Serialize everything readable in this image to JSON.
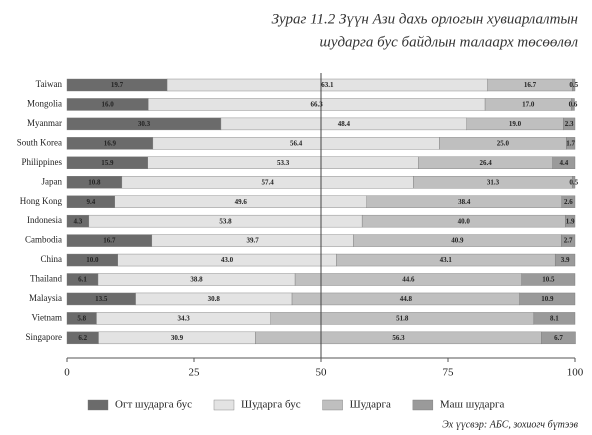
{
  "chart_data": {
    "type": "stacked-bar-horizontal",
    "title": [
      "Зураг 11.2 Зүүн Ази дахь орлогын хувиарлалтын",
      "шударга бус байдлын талаарх төсөөлөл"
    ],
    "source": "Эх үүсвэр: АБС, зохиогч бүтээв",
    "categories": [
      "Taiwan",
      "Mongolia",
      "Myanmar",
      "South Korea",
      "Philippines",
      "Japan",
      "Hong Kong",
      "Indonesia",
      "Cambodia",
      "China",
      "Thailand",
      "Malaysia",
      "Vietnam",
      "Singapore"
    ],
    "series": [
      {
        "name": "Огт шударга бус",
        "color": "#6b6b6b",
        "values": [
          19.7,
          16.0,
          30.3,
          16.9,
          15.9,
          10.8,
          9.4,
          4.3,
          16.7,
          10.0,
          6.1,
          13.5,
          5.8,
          6.2
        ],
        "value_labels": [
          "19.7",
          "16.0",
          "30.3",
          "16.9",
          "15.9",
          "10.8",
          "9.4",
          "4.3",
          "16.7",
          "10.0",
          "6.1",
          "13.5",
          "5.8",
          "6.2"
        ]
      },
      {
        "name": "Шударга бус",
        "color": "#e3e3e3",
        "values": [
          63.1,
          66.3,
          48.4,
          56.4,
          53.3,
          57.4,
          49.6,
          53.8,
          39.7,
          43.0,
          38.8,
          30.8,
          34.3,
          30.9
        ],
        "value_labels": [
          "63.1",
          "66.3",
          "48.4",
          "56.4",
          "53.3",
          "57.4",
          "49.6",
          "53.8",
          "39.7",
          "43.0",
          "38.8",
          "30.8",
          "34.3",
          "30.9"
        ]
      },
      {
        "name": "Шударга",
        "color": "#bfbfbf",
        "values": [
          16.7,
          17.0,
          19.0,
          25.0,
          26.4,
          31.3,
          38.4,
          40.0,
          40.9,
          43.1,
          44.6,
          44.8,
          51.8,
          56.3
        ],
        "value_labels": [
          "16.7",
          "17.0",
          "19.0",
          "25.0",
          "26.4",
          "31.3",
          "38.4",
          "40.0",
          "40.9",
          "43.1",
          "44.6",
          "44.8",
          "51.8",
          "56.3"
        ]
      },
      {
        "name": "Маш шударга",
        "color": "#9a9a9a",
        "values": [
          0.5,
          0.6,
          2.3,
          1.7,
          4.4,
          0.5,
          2.6,
          1.9,
          2.7,
          3.9,
          10.5,
          10.9,
          8.1,
          6.7
        ],
        "value_labels": [
          "0.5",
          "0.6",
          "2.3",
          "1.7",
          "4.4",
          "0.5",
          "2.6",
          "1.9",
          "2.7",
          "3.9",
          "10.5",
          "10.9",
          "8.1",
          "6.7"
        ]
      }
    ],
    "xlim": [
      0,
      100
    ],
    "xticks": [
      0,
      25,
      50,
      75,
      100
    ],
    "vline": 50,
    "grid": false,
    "legend": "bottom"
  }
}
